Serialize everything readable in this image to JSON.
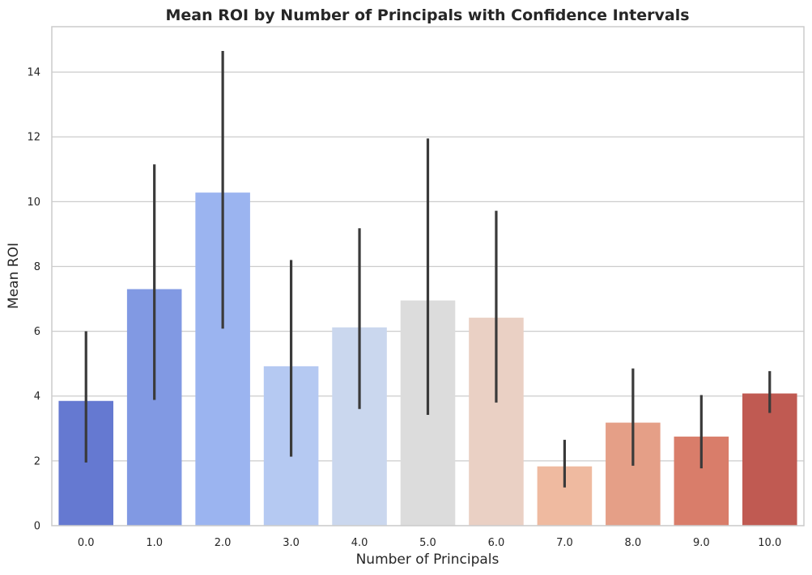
{
  "chart_data": {
    "type": "bar",
    "title": "Mean ROI by Number of Principals with Confidence Intervals",
    "xlabel": "Number of Principals",
    "ylabel": "Mean ROI",
    "categories": [
      "0.0",
      "1.0",
      "2.0",
      "3.0",
      "4.0",
      "5.0",
      "6.0",
      "7.0",
      "8.0",
      "9.0",
      "10.0"
    ],
    "values": [
      3.85,
      7.3,
      10.28,
      4.92,
      6.12,
      6.95,
      6.42,
      1.83,
      3.18,
      2.75,
      4.08
    ],
    "ci_low": [
      1.95,
      3.88,
      6.08,
      2.13,
      3.6,
      3.42,
      3.8,
      1.18,
      1.85,
      1.77,
      3.48
    ],
    "ci_high": [
      6.0,
      11.15,
      14.65,
      8.2,
      9.18,
      11.95,
      9.72,
      2.65,
      4.85,
      4.03,
      4.77
    ],
    "colors": [
      "#6579d1",
      "#8199e3",
      "#9bb4f0",
      "#b5c9f2",
      "#cad7ee",
      "#dcdcdc",
      "#ead0c4",
      "#efbaa0",
      "#e59f87",
      "#d97d6a",
      "#c05a52"
    ],
    "ylim": [
      0,
      15.4
    ],
    "yticks": [
      0,
      2,
      4,
      6,
      8,
      10,
      12,
      14
    ],
    "grid": true,
    "error_bar_color": "#3a3a3a"
  }
}
